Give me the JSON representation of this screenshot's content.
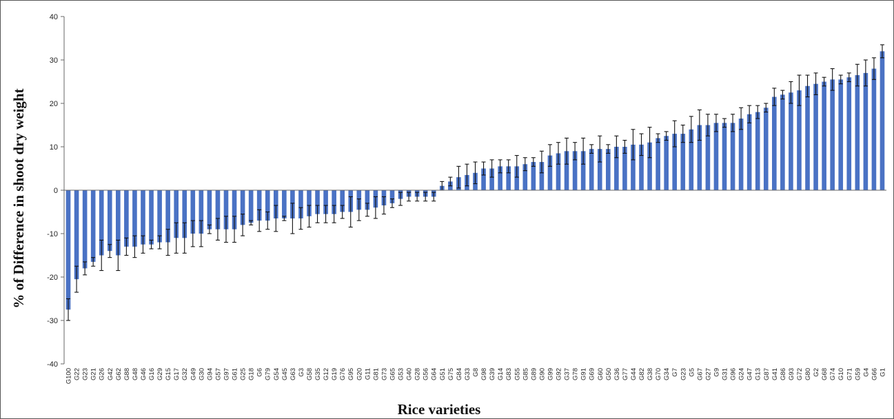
{
  "chart_data": {
    "type": "bar",
    "title": "",
    "xlabel": "Rice varieties",
    "ylabel": "% of Difference in shoot dry weight",
    "ylim": [
      -40,
      40
    ],
    "yticks": [
      -40,
      -30,
      -20,
      -10,
      0,
      10,
      20,
      30,
      40
    ],
    "grid": false,
    "legend": "none",
    "bar_color": "#4a72c4",
    "error_color": "#111111",
    "categories": [
      "G100",
      "G22",
      "G23",
      "G21",
      "G26",
      "G42",
      "G62",
      "G88",
      "G48",
      "G46",
      "G16",
      "G29",
      "G15",
      "G17",
      "G32",
      "G49",
      "G30",
      "G94",
      "G57",
      "G97",
      "G61",
      "G25",
      "G18",
      "G6",
      "G79",
      "G54",
      "G45",
      "G63",
      "G3",
      "G58",
      "G35",
      "G12",
      "G19",
      "G76",
      "G95",
      "G20",
      "G11",
      "G81",
      "G73",
      "G65",
      "G53",
      "G40",
      "G28",
      "G56",
      "G64",
      "G51",
      "G75",
      "G84",
      "G33",
      "G8",
      "G98",
      "G39",
      "G14",
      "G83",
      "G55",
      "G85",
      "G89",
      "G90",
      "G99",
      "G92",
      "G37",
      "G78",
      "G91",
      "G69",
      "G60",
      "G50",
      "G36",
      "G77",
      "G44",
      "G82",
      "G38",
      "G70",
      "G34",
      "G7",
      "G23",
      "G5",
      "G67",
      "G27",
      "G9",
      "G31",
      "G96",
      "G24",
      "G47",
      "G13",
      "G87",
      "G41",
      "G86",
      "G93",
      "G72",
      "G80",
      "G2",
      "G68",
      "G74",
      "G10",
      "G71",
      "G59",
      "G4",
      "G66",
      "G1"
    ],
    "values": [
      -27.5,
      -20.5,
      -18,
      -16.5,
      -15,
      -14,
      -15,
      -13,
      -13,
      -12.5,
      -12.5,
      -12,
      -12,
      -11,
      -11,
      -10,
      -10,
      -9,
      -9,
      -9,
      -9,
      -8,
      -7.5,
      -7,
      -7,
      -6.5,
      -6.5,
      -6.5,
      -6.5,
      -6,
      -5.5,
      -5.5,
      -5.5,
      -5,
      -5,
      -4.5,
      -4.5,
      -4,
      -3.5,
      -3,
      -2,
      -1.5,
      -1.5,
      -1.5,
      -1.5,
      1,
      2,
      3,
      3.5,
      4,
      5,
      5,
      5.5,
      5.5,
      5.5,
      6,
      6.5,
      6.5,
      8,
      8.5,
      9,
      9,
      9,
      9.5,
      9.5,
      9.5,
      10,
      10,
      10.5,
      10.5,
      11,
      12,
      12.5,
      13,
      13,
      14,
      15,
      15,
      15.5,
      15.5,
      15.5,
      16.5,
      17.5,
      18,
      19,
      21.5,
      22,
      22.5,
      23,
      24,
      24.5,
      25,
      25.5,
      25.5,
      26,
      26.5,
      27,
      28,
      32
    ],
    "errors": [
      2.5,
      3,
      1.5,
      1,
      3.5,
      1.5,
      3.5,
      2,
      2.5,
      2,
      1,
      1.5,
      3,
      3.5,
      3.5,
      3,
      3,
      1,
      2.5,
      3,
      3,
      2.5,
      0.5,
      2.5,
      2,
      3,
      0.5,
      3.5,
      2.5,
      2.5,
      2,
      2,
      2,
      1.5,
      3.5,
      2.5,
      1.5,
      2.5,
      2,
      1,
      1.5,
      1,
      1,
      1,
      1,
      1,
      1,
      2.5,
      2.5,
      2.5,
      1.5,
      2,
      1.5,
      1.5,
      2.5,
      1.5,
      1,
      2.5,
      2.5,
      2.5,
      3,
      2,
      3,
      1,
      3,
      1,
      2.5,
      1.5,
      3.5,
      2.5,
      3.5,
      1,
      1,
      3,
      2,
      3,
      3.5,
      2.5,
      2,
      1,
      2,
      2.5,
      2,
      1.5,
      1,
      2,
      1,
      2.5,
      3.5,
      2.5,
      2.5,
      1,
      2.5,
      1,
      1,
      2.5,
      3,
      2.5,
      1.5
    ]
  }
}
